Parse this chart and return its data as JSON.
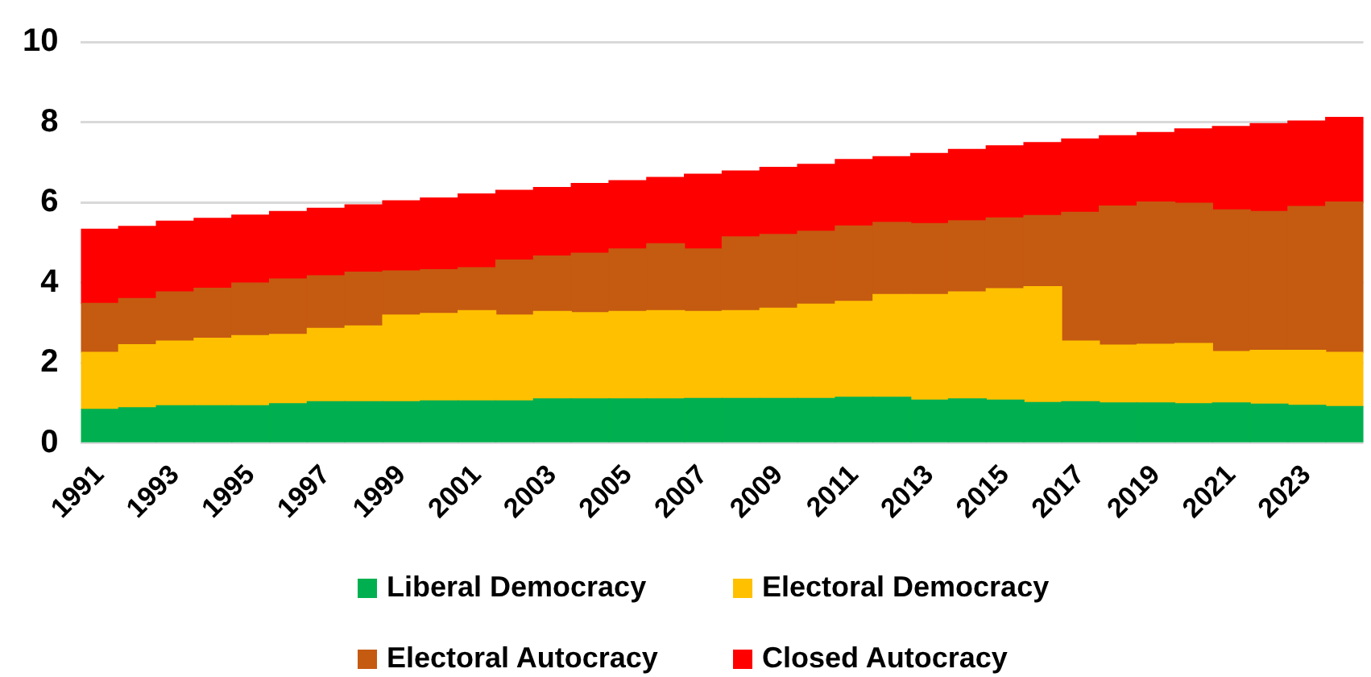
{
  "chart_data": {
    "type": "bar",
    "stacked": true,
    "categories": [
      "1991",
      null,
      "1993",
      null,
      "1995",
      null,
      "1997",
      null,
      "1999",
      null,
      "2001",
      null,
      "2003",
      null,
      "2005",
      null,
      "2007",
      null,
      "2009",
      null,
      "2011",
      null,
      "2013",
      null,
      "2015",
      null,
      "2017",
      null,
      "2019",
      null,
      "2021",
      null,
      "2023",
      null
    ],
    "series": [
      {
        "name": "Liberal Democracy",
        "color": "#00b050",
        "values": [
          0.84,
          0.88,
          0.93,
          0.93,
          0.93,
          0.98,
          1.03,
          1.03,
          1.03,
          1.05,
          1.05,
          1.05,
          1.1,
          1.1,
          1.1,
          1.1,
          1.11,
          1.11,
          1.11,
          1.11,
          1.14,
          1.14,
          1.07,
          1.1,
          1.07,
          1.01,
          1.03,
          1.0,
          1.0,
          0.98,
          1.0,
          0.97,
          0.94,
          0.91
        ]
      },
      {
        "name": "Electoral Democracy",
        "color": "#ffc000",
        "values": [
          1.42,
          1.57,
          1.61,
          1.68,
          1.75,
          1.73,
          1.83,
          1.89,
          2.16,
          2.18,
          2.25,
          2.14,
          2.18,
          2.15,
          2.18,
          2.2,
          2.17,
          2.19,
          2.25,
          2.35,
          2.39,
          2.56,
          2.63,
          2.67,
          2.78,
          2.89,
          1.51,
          1.44,
          1.46,
          1.5,
          1.28,
          1.34,
          1.37,
          1.35
        ]
      },
      {
        "name": "Electoral Autocracy",
        "color": "#c55a11",
        "values": [
          1.22,
          1.15,
          1.23,
          1.25,
          1.31,
          1.38,
          1.31,
          1.34,
          1.1,
          1.09,
          1.07,
          1.37,
          1.38,
          1.48,
          1.56,
          1.67,
          1.56,
          1.84,
          1.84,
          1.82,
          1.88,
          1.8,
          1.77,
          1.77,
          1.76,
          1.77,
          3.21,
          3.47,
          3.55,
          3.5,
          3.53,
          3.46,
          3.59,
          3.75
        ]
      },
      {
        "name": "Closed Autocracy",
        "color": "#ff0000",
        "values": [
          1.85,
          1.8,
          1.76,
          1.74,
          1.69,
          1.68,
          1.68,
          1.68,
          1.75,
          1.79,
          1.84,
          1.74,
          1.71,
          1.74,
          1.7,
          1.65,
          1.86,
          1.64,
          1.67,
          1.67,
          1.66,
          1.64,
          1.75,
          1.78,
          1.8,
          1.82,
          1.83,
          1.75,
          1.73,
          1.85,
          2.08,
          2.19,
          2.13,
          2.11
        ]
      }
    ],
    "ylim": [
      0,
      10
    ],
    "yticks": [
      0,
      2,
      4,
      6,
      8,
      10
    ],
    "grid": "y",
    "legend": "bottom"
  }
}
